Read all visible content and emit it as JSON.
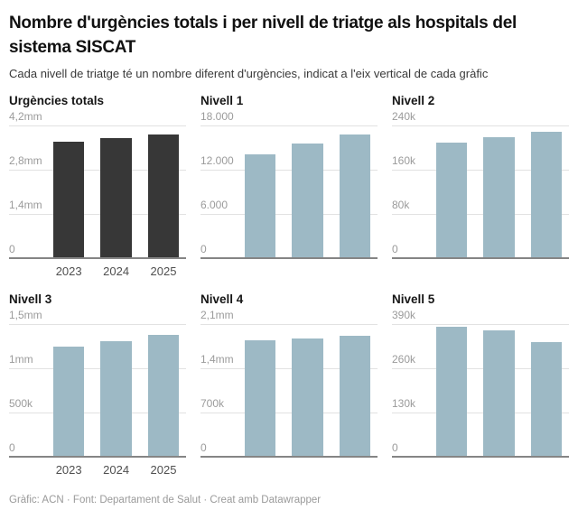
{
  "header": {
    "title": "Nombre d'urgències totals i per nivell de triatge als hospitals del sistema SISCAT",
    "subtitle": "Cada nivell de triatge té un nombre diferent d'urgències, indicat a l'eix vertical de cada gràfic"
  },
  "footer": {
    "text": "Gràfic: ACN · Font: Departament de Salut · Creat amb Datawrapper"
  },
  "colors": {
    "total_bar": "#373737",
    "level_bar": "#9db9c5",
    "gridline": "#e2e2e2",
    "axis_line": "#858585",
    "tick_label": "#9b9b9b",
    "year_label": "#4f4f4f"
  },
  "chart_data": [
    {
      "type": "bar",
      "title": "Urgències totals",
      "categories": [
        "2023",
        "2024",
        "2025"
      ],
      "values": [
        3710000,
        3820000,
        3930000
      ],
      "ticks": [
        "4,2mm",
        "2,8mm",
        "1,4mm",
        "0"
      ],
      "tick_values": [
        4200000,
        2800000,
        1400000,
        0
      ],
      "ylim": [
        0,
        4200000
      ],
      "show_x_labels": true,
      "bar_color": "#373737"
    },
    {
      "type": "bar",
      "title": "Nivell 1",
      "categories": [
        "2023",
        "2024",
        "2025"
      ],
      "values": [
        14200,
        15700,
        16900
      ],
      "ticks": [
        "18.000",
        "12.000",
        "6.000",
        "0"
      ],
      "tick_values": [
        18000,
        12000,
        6000,
        0
      ],
      "ylim": [
        0,
        18000
      ],
      "show_x_labels": false,
      "bar_color": "#9db9c5"
    },
    {
      "type": "bar",
      "title": "Nivell 2",
      "categories": [
        "2023",
        "2024",
        "2025"
      ],
      "values": [
        210000,
        221000,
        231000
      ],
      "ticks": [
        "240k",
        "160k",
        "80k",
        "0"
      ],
      "tick_values": [
        240000,
        160000,
        80000,
        0
      ],
      "ylim": [
        0,
        240000
      ],
      "show_x_labels": false,
      "bar_color": "#9db9c5"
    },
    {
      "type": "bar",
      "title": "Nivell 3",
      "categories": [
        "2023",
        "2024",
        "2025"
      ],
      "values": [
        1260000,
        1320000,
        1390000
      ],
      "ticks": [
        "1,5mm",
        "1mm",
        "500k",
        "0"
      ],
      "tick_values": [
        1500000,
        1000000,
        500000,
        0
      ],
      "ylim": [
        0,
        1500000
      ],
      "show_x_labels": true,
      "bar_color": "#9db9c5"
    },
    {
      "type": "bar",
      "title": "Nivell 4",
      "categories": [
        "2023",
        "2024",
        "2025"
      ],
      "values": [
        1860000,
        1890000,
        1930000
      ],
      "ticks": [
        "2,1mm",
        "1,4mm",
        "700k",
        "0"
      ],
      "tick_values": [
        2100000,
        1400000,
        700000,
        0
      ],
      "ylim": [
        0,
        2100000
      ],
      "show_x_labels": false,
      "bar_color": "#9db9c5"
    },
    {
      "type": "bar",
      "title": "Nivell 5",
      "categories": [
        "2023",
        "2024",
        "2025"
      ],
      "values": [
        385000,
        374000,
        340000
      ],
      "ticks": [
        "390k",
        "260k",
        "130k",
        "0"
      ],
      "tick_values": [
        390000,
        260000,
        130000,
        0
      ],
      "ylim": [
        0,
        390000
      ],
      "show_x_labels": false,
      "bar_color": "#9db9c5"
    }
  ]
}
